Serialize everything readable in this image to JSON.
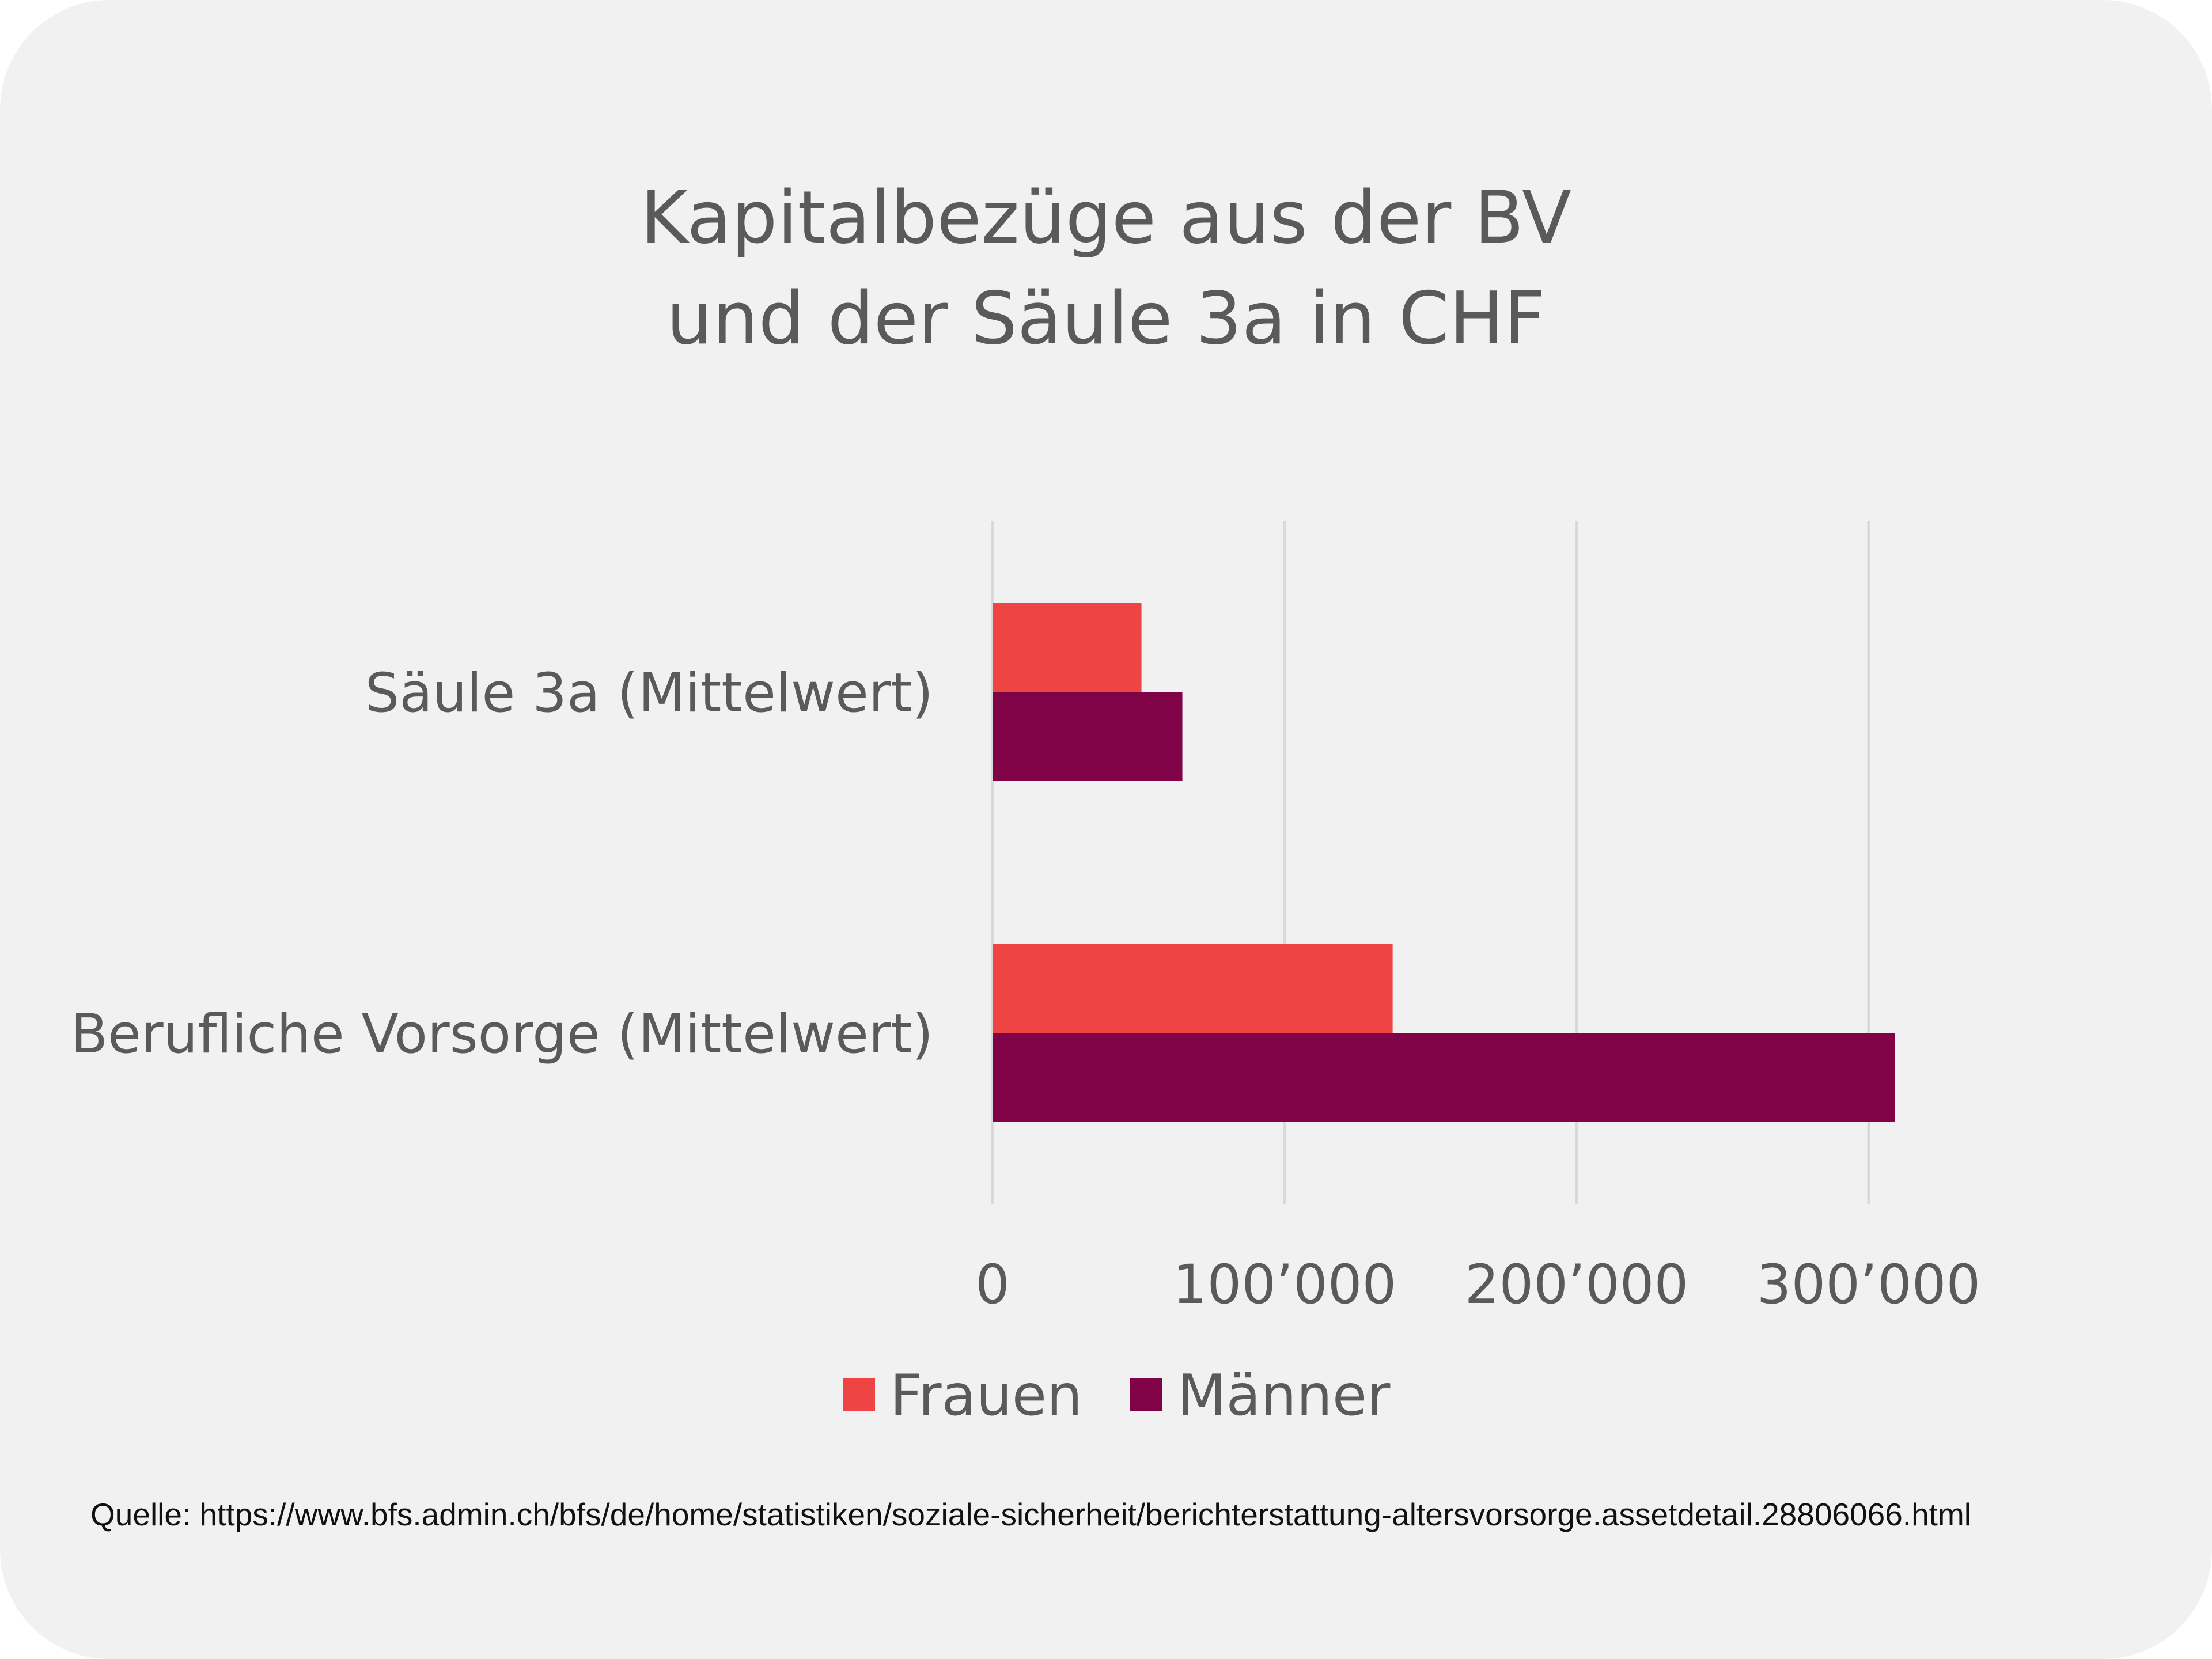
{
  "colors": {
    "background": "#f1f1f1",
    "frauen": "#ef4444",
    "maenner": "#7f0346",
    "gridline": "#d9d9d9",
    "text": "#5a5a5a"
  },
  "chart_data": {
    "type": "bar",
    "orientation": "horizontal",
    "title_lines": [
      "Kapitalbezüge aus der BV",
      "und der Säule 3a in CHF"
    ],
    "categories": [
      "Säule 3a (Mittelwert)",
      "Berufliche Vorsorge (Mittelwert)"
    ],
    "series": [
      {
        "name": "Frauen",
        "color": "#ef4444",
        "values": [
          51000,
          137000
        ]
      },
      {
        "name": "Männer",
        "color": "#7f0346",
        "values": [
          65000,
          309000
        ]
      }
    ],
    "xlim": [
      0,
      300000
    ],
    "xticks": [
      0,
      100000,
      200000,
      300000
    ],
    "xtick_labels": [
      "0",
      "100’000",
      "200’000",
      "300’000"
    ],
    "grid": true,
    "legend_position": "bottom"
  },
  "source_text": "Quelle: https://www.bfs.admin.ch/bfs/de/home/statistiken/soziale-sicherheit/berichterstattung-altersvorsorge.assetdetail.28806066.html"
}
